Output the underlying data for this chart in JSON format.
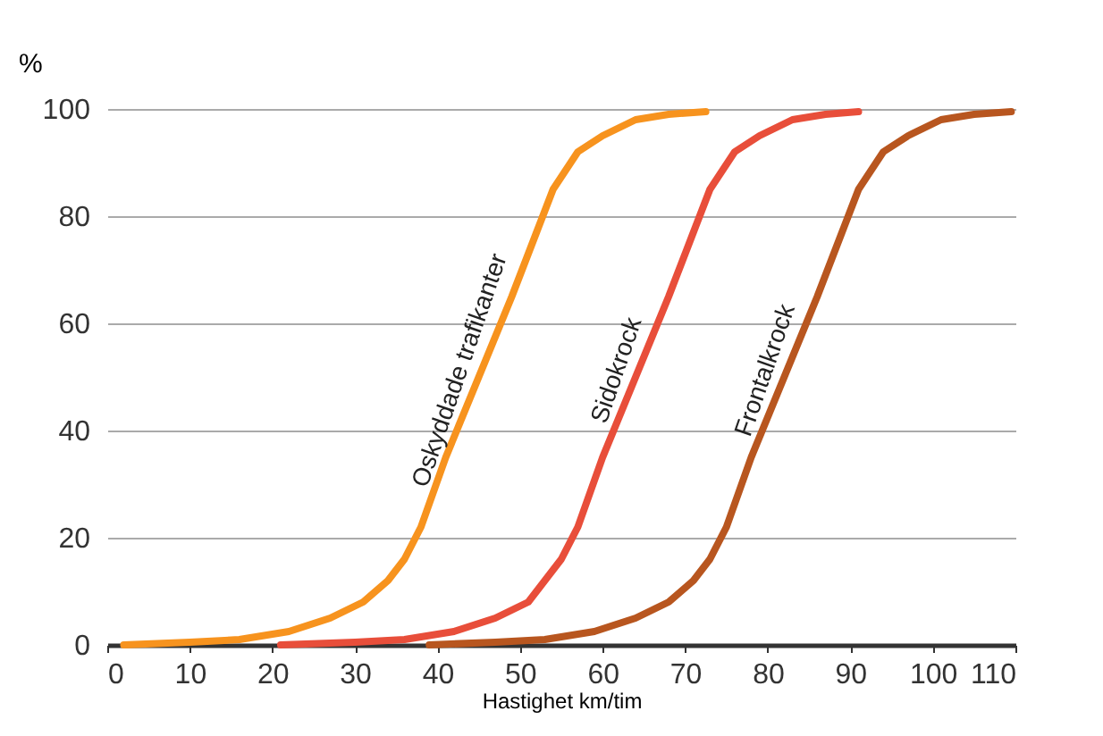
{
  "chart_data": {
    "type": "line",
    "xlabel": "Hastighet km/tim",
    "ylabel": "%",
    "xlim": [
      0,
      110
    ],
    "xticks": [
      0,
      10,
      20,
      30,
      40,
      50,
      60,
      70,
      80,
      90,
      100,
      110
    ],
    "ylim": [
      0,
      100
    ],
    "yticks": [
      0,
      20,
      40,
      60,
      80,
      100
    ],
    "grid": "y",
    "legend": false,
    "marker": "none",
    "line_style": "solid",
    "series": [
      {
        "name": "Oskyddade trafikanter",
        "color": "#f7931e",
        "x": [
          2,
          10,
          16,
          22,
          27,
          31,
          34,
          36,
          38,
          41,
          45,
          49,
          52,
          54,
          57,
          60,
          64,
          68,
          72.5
        ],
        "values": [
          0,
          0.5,
          1,
          2.5,
          5,
          8,
          12,
          16,
          22,
          35,
          50,
          65,
          77,
          85,
          92,
          95,
          98,
          99,
          99.5
        ]
      },
      {
        "name": "Sidokrock",
        "color": "#e84e3a",
        "x": [
          21,
          30,
          36,
          42,
          47,
          51,
          53,
          55,
          57,
          60,
          64,
          68,
          71,
          73,
          76,
          79,
          83,
          87,
          91
        ],
        "values": [
          0,
          0.5,
          1,
          2.5,
          5,
          8,
          12,
          16,
          22,
          35,
          50,
          65,
          77,
          85,
          92,
          95,
          98,
          99,
          99.5
        ]
      },
      {
        "name": "Frontalkrock",
        "color": "#b8561f",
        "x": [
          39,
          47,
          53,
          59,
          64,
          68,
          71,
          73,
          75,
          78,
          82,
          86,
          89,
          91,
          94,
          97,
          101,
          105,
          109.5
        ],
        "values": [
          0,
          0.5,
          1,
          2.5,
          5,
          8,
          12,
          16,
          22,
          35,
          50,
          65,
          77,
          85,
          92,
          95,
          98,
          99,
          99.5
        ]
      }
    ]
  }
}
